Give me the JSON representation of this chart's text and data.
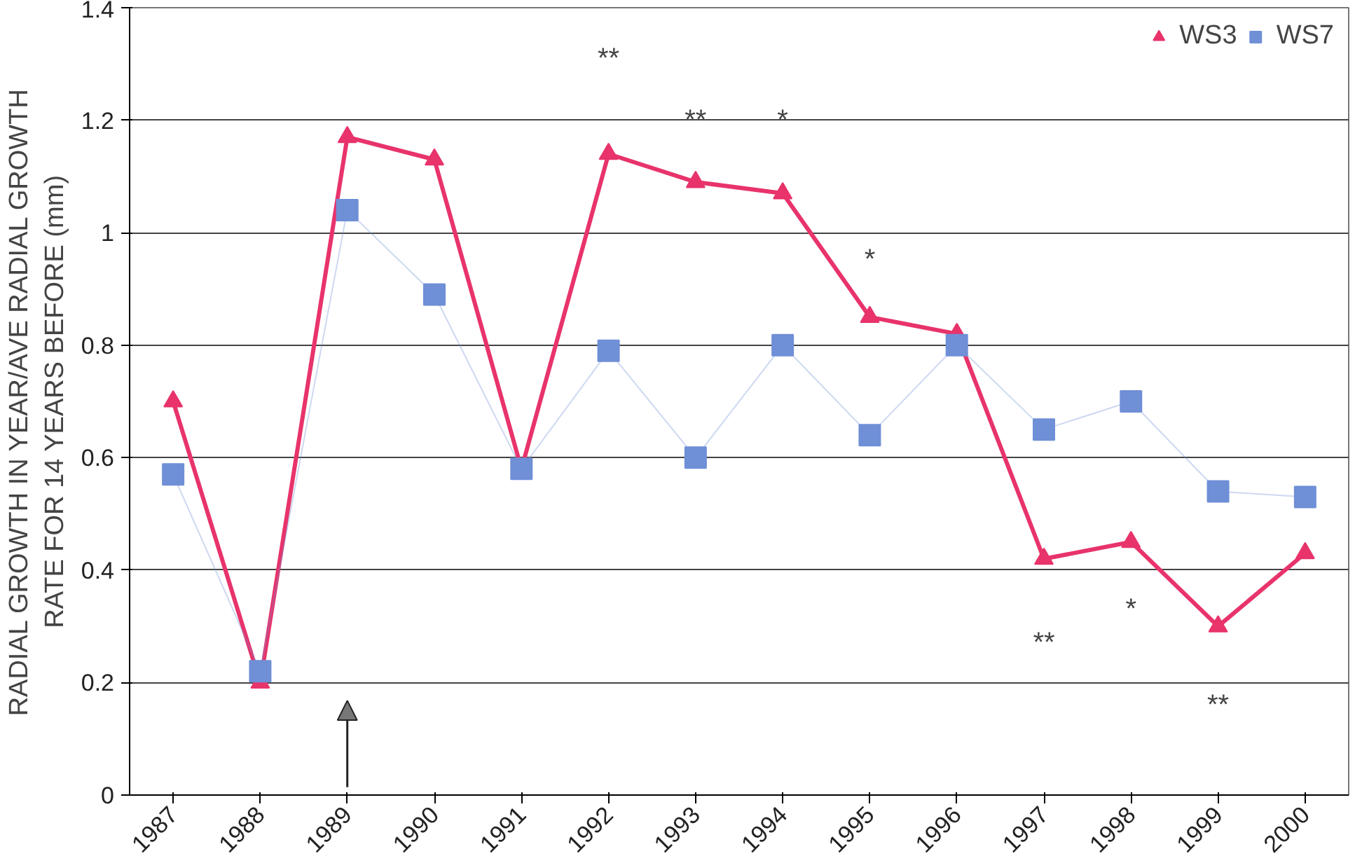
{
  "chart_data": {
    "type": "line",
    "ylabel": "RADIAL GROWTH IN YEAR/AVE RADIAL GROWTH\nRATE FOR 14 YEARS BEFORE (mm)",
    "categories": [
      "1987",
      "1988",
      "1989",
      "1990",
      "1991",
      "1992",
      "1993",
      "1994",
      "1995",
      "1996",
      "1997",
      "1998",
      "1999",
      "2000"
    ],
    "series": [
      {
        "name": "WS3",
        "color": "#e8336b",
        "marker": "triangle",
        "values": [
          0.7,
          0.2,
          1.17,
          1.13,
          0.58,
          1.14,
          1.09,
          1.07,
          0.85,
          0.82,
          0.42,
          0.45,
          0.3,
          0.43
        ]
      },
      {
        "name": "WS7",
        "color": "#6f8fd6",
        "marker": "square",
        "values": [
          0.57,
          0.22,
          1.04,
          0.89,
          0.58,
          0.79,
          0.6,
          0.8,
          0.64,
          0.8,
          0.65,
          0.7,
          0.54,
          0.53
        ]
      }
    ],
    "ylim": [
      0,
      1.4
    ],
    "yticks": [
      0,
      0.2,
      0.4,
      0.6,
      0.8,
      1,
      1.2,
      1.4
    ],
    "grid": "y",
    "legend": "top right",
    "annotations": [
      "**",
      "**",
      "*",
      "*",
      "**",
      "*",
      "**"
    ]
  }
}
